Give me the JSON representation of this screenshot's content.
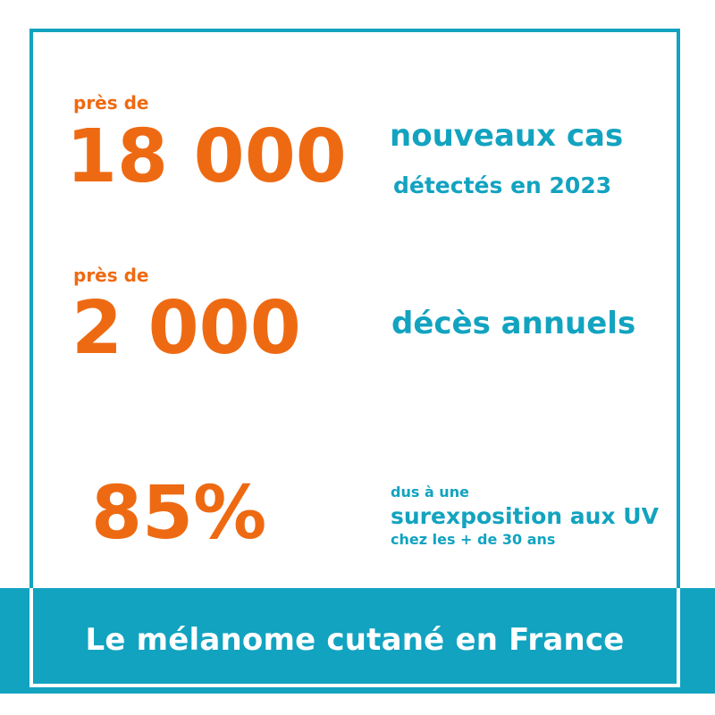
{
  "stats": [
    {
      "prefix": "près de",
      "value": "18 000",
      "line1": "nouveaux cas",
      "line2": "détectés en 2023"
    },
    {
      "prefix": "près de",
      "value": "2 000",
      "line1": "décès annuels"
    },
    {
      "value": "85%",
      "line1": "dus à une",
      "line2": "surexposition aux UV",
      "line3": "chez les + de 30 ans"
    }
  ],
  "banner": {
    "title": "Le mélanome cutané en France"
  },
  "colors": {
    "accent_orange": "#ee6a12",
    "accent_teal": "#12a3c0",
    "background": "#ffffff"
  }
}
